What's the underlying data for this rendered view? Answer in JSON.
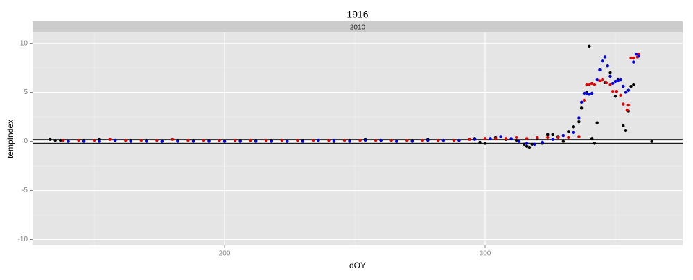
{
  "chart_data": {
    "type": "scatter",
    "title": "1916",
    "facet_label": "2010",
    "x_label": "dOY",
    "y_label": "tempIndex",
    "xlim": [
      126.3,
      375.8
    ],
    "ylim": [
      -10.6,
      11.1
    ],
    "xticks": [
      200,
      300
    ],
    "yticks": [
      -10,
      -5,
      0,
      5,
      10
    ],
    "x_minor_grid": [
      150,
      250,
      350
    ],
    "y_minor_grid": [
      -7.5,
      -2.5,
      2.5,
      7.5
    ],
    "grid": true,
    "hlines": [
      0.2,
      -0.2
    ],
    "series": [
      {
        "color": "#000000",
        "x": [
          133,
          135,
          137,
          140,
          146,
          152,
          158,
          164,
          170,
          176,
          182,
          188,
          194,
          200,
          206,
          212,
          218,
          224,
          230,
          236,
          242,
          248,
          254,
          260,
          266,
          272,
          278,
          284,
          290,
          296,
          298,
          300,
          304,
          308,
          312,
          315,
          316,
          317,
          318,
          320,
          322,
          324,
          326,
          328,
          330,
          332,
          334,
          336,
          337,
          339,
          340,
          341,
          342,
          343,
          346,
          348,
          350,
          351,
          353,
          354,
          355,
          356,
          357,
          364
        ],
        "values": [
          0.2,
          0.1,
          0.1,
          0.0,
          0.1,
          0.2,
          0.1,
          0.1,
          0.1,
          0.0,
          0.1,
          0.1,
          0.1,
          0.0,
          0.1,
          0.1,
          0.1,
          0.0,
          0.1,
          0.1,
          0.0,
          0.1,
          0.2,
          0.1,
          0.0,
          0.1,
          0.2,
          0.1,
          0.1,
          0.3,
          -0.1,
          -0.2,
          0.4,
          0.2,
          0.1,
          -0.3,
          -0.5,
          -0.6,
          -0.3,
          0.3,
          -0.2,
          0.7,
          0.7,
          0.5,
          0.0,
          1.0,
          1.5,
          2.0,
          3.4,
          5.0,
          9.7,
          0.3,
          -0.2,
          1.9,
          6.0,
          7.0,
          4.6,
          6.3,
          1.6,
          1.1,
          3.1,
          5.6,
          5.8,
          0.0
        ]
      },
      {
        "color": "#e00000",
        "x": [
          138,
          144,
          150,
          156,
          162,
          168,
          174,
          180,
          186,
          192,
          198,
          204,
          210,
          216,
          222,
          228,
          234,
          240,
          246,
          252,
          258,
          264,
          270,
          276,
          282,
          288,
          294,
          300,
          304,
          308,
          312,
          316,
          320,
          324,
          328,
          332,
          336,
          338,
          339,
          340,
          341,
          342,
          344,
          345,
          346.5,
          348,
          349,
          350.5,
          352,
          353,
          354.5,
          355,
          356,
          357,
          358.5,
          359
        ],
        "values": [
          0.1,
          0.1,
          0.1,
          0.2,
          0.1,
          0.1,
          0.1,
          0.2,
          0.1,
          0.1,
          0.1,
          0.1,
          0.1,
          0.1,
          0.1,
          0.1,
          0.1,
          0.1,
          0.1,
          0.1,
          0.1,
          0.1,
          0.1,
          0.1,
          0.1,
          0.1,
          0.2,
          0.3,
          0.3,
          0.3,
          0.4,
          0.3,
          0.4,
          0.4,
          0.4,
          0.4,
          0.5,
          4.2,
          5.8,
          5.8,
          5.9,
          5.8,
          6.2,
          6.3,
          6.0,
          5.8,
          5.1,
          5.1,
          4.7,
          3.8,
          3.2,
          3.7,
          8.5,
          8.5,
          8.6,
          8.9
        ]
      },
      {
        "color": "#0000e0",
        "x": [
          140,
          146,
          152,
          158,
          164,
          170,
          176,
          182,
          188,
          194,
          200,
          206,
          212,
          218,
          224,
          230,
          236,
          242,
          248,
          254,
          260,
          266,
          272,
          278,
          284,
          290,
          296,
          302,
          306,
          310,
          313,
          316,
          319,
          322,
          326,
          330,
          334,
          336,
          337,
          338,
          339,
          340,
          341,
          343,
          344,
          345,
          346,
          347,
          348,
          349,
          350,
          351,
          352,
          353,
          354,
          355,
          357,
          358,
          359
        ],
        "values": [
          0.0,
          0.0,
          0.0,
          0.1,
          0.0,
          0.0,
          0.0,
          0.0,
          0.0,
          0.0,
          0.0,
          0.0,
          0.0,
          0.0,
          0.0,
          0.0,
          0.1,
          0.1,
          0.0,
          0.1,
          0.1,
          0.0,
          0.0,
          0.1,
          0.1,
          0.1,
          0.2,
          0.3,
          0.5,
          0.3,
          0.0,
          -0.2,
          -0.3,
          -0.1,
          0.2,
          0.6,
          0.9,
          2.4,
          4.0,
          4.9,
          4.9,
          4.8,
          4.9,
          6.3,
          7.3,
          8.2,
          8.6,
          7.7,
          6.6,
          5.9,
          6.1,
          6.2,
          6.3,
          5.6,
          5.0,
          5.2,
          8.1,
          8.9,
          8.7
        ]
      }
    ]
  }
}
